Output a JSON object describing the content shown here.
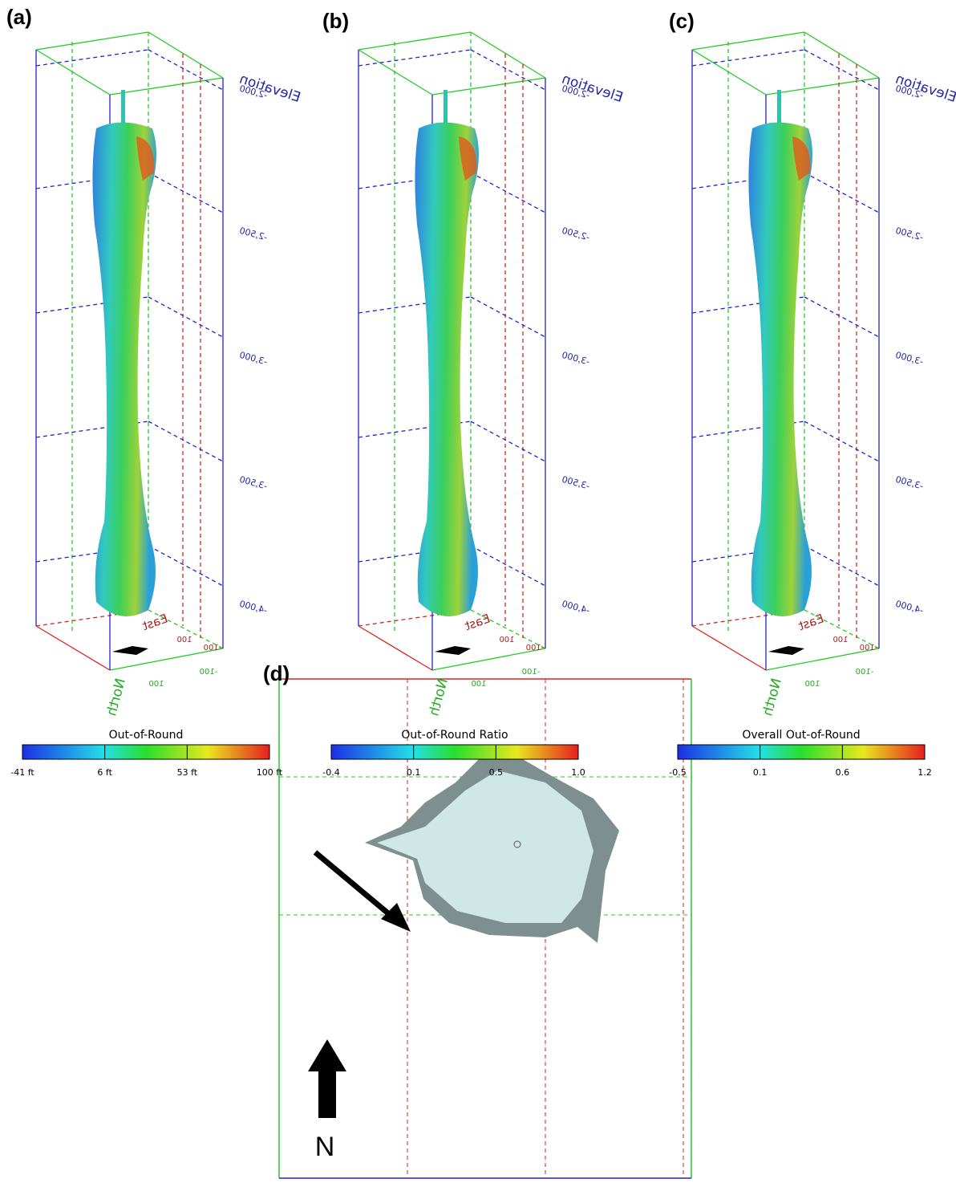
{
  "panels": [
    {
      "label": "(a)",
      "axis_labels": {
        "elevation": "Elevation",
        "north": "North",
        "east": "East"
      },
      "elevation_ticks": [
        "-2,000",
        "-2,500",
        "-3,000",
        "-3,500",
        "-4,000"
      ],
      "north_ticks": [
        "100",
        "-100"
      ],
      "east_ticks": [
        "100",
        "-100"
      ],
      "colorbar": {
        "title": "Out-of-Round",
        "ticks": [
          "-41 ft",
          "6 ft",
          "53 ft",
          "100 ft"
        ]
      }
    },
    {
      "label": "(b)",
      "axis_labels": {
        "elevation": "Elevation",
        "north": "North",
        "east": "East"
      },
      "elevation_ticks": [
        "-2,000",
        "-2,500",
        "-3,000",
        "-3,500",
        "-4,000"
      ],
      "north_ticks": [
        "100",
        "-100"
      ],
      "east_ticks": [
        "100",
        "-100"
      ],
      "colorbar": {
        "title": "Out-of-Round Ratio",
        "ticks": [
          "-0.4",
          "0.1",
          "0.5",
          "1.0"
        ]
      }
    },
    {
      "label": "(c)",
      "axis_labels": {
        "elevation": "Elevation",
        "north": "North",
        "east": "East"
      },
      "elevation_ticks": [
        "-2,000",
        "-2,500",
        "-3,000",
        "-3,500",
        "-4,000"
      ],
      "north_ticks": [
        "100",
        "-100"
      ],
      "east_ticks": [
        "100",
        "-100"
      ],
      "colorbar": {
        "title": "Overall Out-of-Round",
        "ticks": [
          "-0.5",
          "0.1",
          "0.6",
          "1.2"
        ]
      }
    }
  ],
  "plan_view": {
    "label": "(d)",
    "north": "N"
  }
}
